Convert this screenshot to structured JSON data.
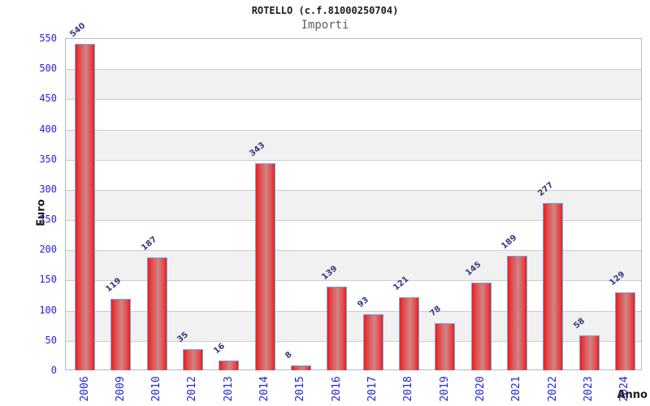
{
  "header": {
    "title": "ROTELLO (c.f.81000250704)",
    "subtitle": "Importi"
  },
  "axes": {
    "y_label": "Euro",
    "x_label": "Anno"
  },
  "chart_data": {
    "type": "bar",
    "title": "ROTELLO (c.f.81000250704)",
    "subtitle": "Importi",
    "xlabel": "Anno",
    "ylabel": "Euro",
    "categories": [
      "2006",
      "2009",
      "2010",
      "2012",
      "2013",
      "2014",
      "2015",
      "2016",
      "2017",
      "2018",
      "2019",
      "2020",
      "2021",
      "2022",
      "2023",
      "2024"
    ],
    "values": [
      540,
      119,
      187,
      35,
      16,
      343,
      8,
      139,
      93,
      121,
      78,
      145,
      189,
      277,
      58,
      129
    ],
    "ylim": [
      0,
      550
    ],
    "ytick_step": 50,
    "yticks": [
      0,
      50,
      100,
      150,
      200,
      250,
      300,
      350,
      400,
      450,
      500,
      550
    ],
    "grid": true,
    "legend": "none",
    "colors": {
      "bar_edge_red": "#ee1c1c",
      "bar_mid_red": "#cf8585",
      "bar_border_blue": "#70a8e8",
      "tick_label_blue": "#2323dd",
      "value_label_navy": "#333a7d",
      "band_gray": "#f1f1f1",
      "band_white": "#ffffff",
      "gridline_gray": "#cccccc",
      "frame_gray": "#b9b9b9"
    }
  }
}
